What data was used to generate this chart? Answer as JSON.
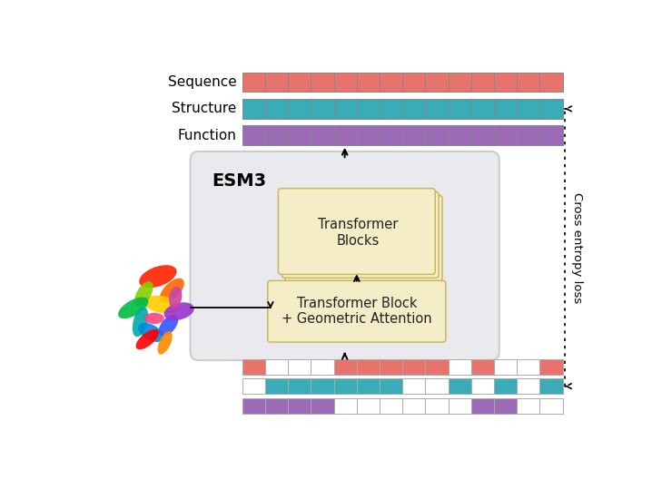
{
  "seq_color": "#E8736A",
  "struct_color": "#3AACB8",
  "func_color": "#9B6BB5",
  "esm_box_color": "#E9E9EE",
  "transformer_box_color": "#F5ECC8",
  "transformer_box_edge": "#C8B860",
  "output_labels": [
    "Sequence",
    "Structure",
    "Function"
  ],
  "cross_entropy_text": "Cross entropy loss",
  "esm_label": "ESM3",
  "transformer_blocks_label": "Transformer\nBlocks",
  "geo_attention_label": "Transformer Block\n+ Geometric Attention",
  "n_cells": 14,
  "input_seq_pattern": [
    1,
    0,
    0,
    0,
    1,
    1,
    1,
    1,
    1,
    0,
    1,
    0,
    0,
    1
  ],
  "input_struct_pattern": [
    0,
    1,
    1,
    1,
    1,
    1,
    1,
    0,
    0,
    1,
    0,
    1,
    0,
    1
  ],
  "input_func_pattern": [
    1,
    1,
    1,
    1,
    0,
    0,
    0,
    0,
    0,
    0,
    1,
    1,
    0,
    0
  ],
  "background_color": "#FFFFFF",
  "label_fontsize": 11,
  "esm_fontsize": 14,
  "inner_fontsize": 10.5
}
